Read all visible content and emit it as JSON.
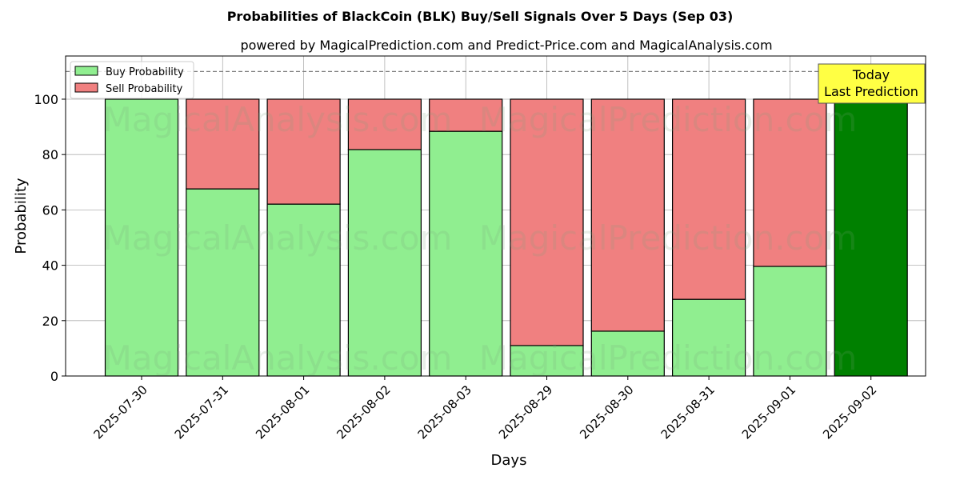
{
  "chart_data": {
    "type": "bar",
    "stacked": true,
    "title": "Probabilities of BlackCoin (BLK) Buy/Sell Signals Over 5 Days (Sep 03)",
    "subtitle": "powered by MagicalPrediction.com and Predict-Price.com and MagicalAnalysis.com",
    "xlabel": "Days",
    "ylabel": "Probability",
    "ylim": [
      0,
      115.6
    ],
    "yticks": [
      0,
      20,
      40,
      60,
      80,
      100
    ],
    "grid": true,
    "legend_position": "top-left",
    "categories": [
      "2025-07-30",
      "2025-07-31",
      "2025-08-01",
      "2025-08-02",
      "2025-08-03",
      "2025-08-29",
      "2025-08-30",
      "2025-08-31",
      "2025-09-01",
      "2025-09-02"
    ],
    "series": [
      {
        "name": "Buy Probability",
        "color": "#90ee90",
        "values": [
          100,
          67.6,
          62.1,
          81.8,
          88.4,
          11.0,
          16.2,
          27.7,
          39.6,
          100
        ]
      },
      {
        "name": "Sell Probability",
        "color": "#f08080",
        "values": [
          0,
          32.4,
          37.9,
          18.2,
          11.6,
          89.0,
          83.8,
          72.3,
          60.4,
          0
        ]
      }
    ],
    "highlight_color": "#008000",
    "reference_line": 110,
    "annotation": {
      "line1": "Today",
      "line2": "Last Prediction",
      "color": "#ffff44"
    },
    "watermarks": [
      "MagicalAnalysis.com",
      "MagicalPrediction.com"
    ]
  }
}
